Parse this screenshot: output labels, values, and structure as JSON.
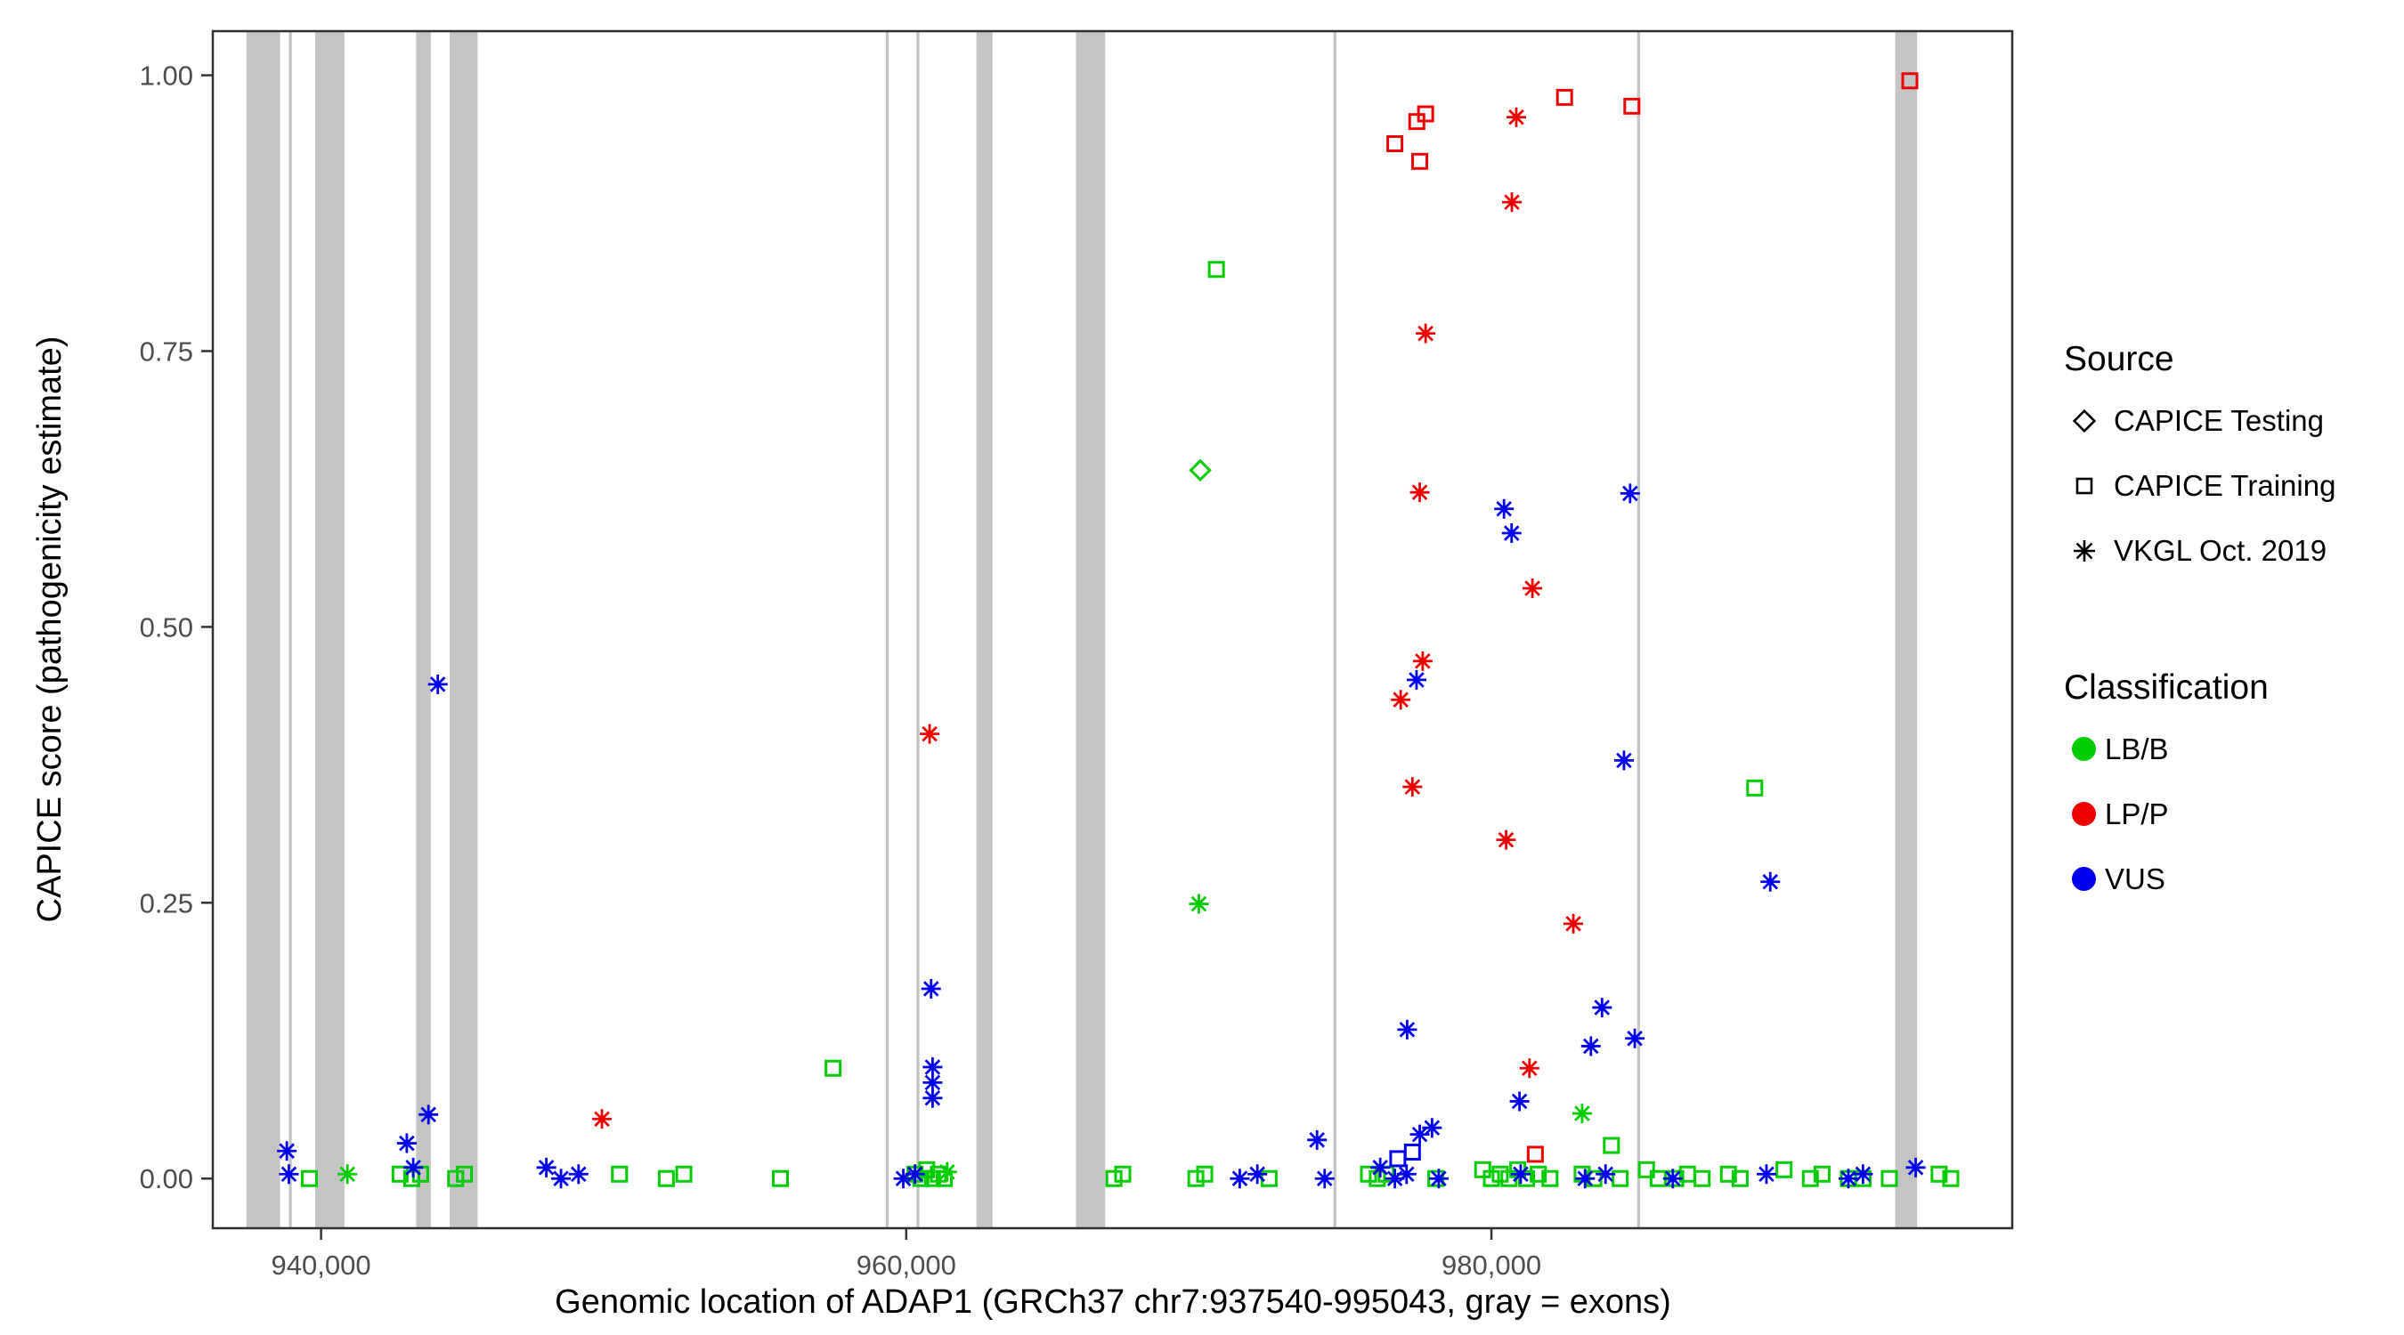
{
  "figure": {
    "legend": {
      "source": {
        "title": "Source",
        "items": [
          {
            "label": "CAPICE Testing",
            "shape": "diamond"
          },
          {
            "label": "CAPICE Training",
            "shape": "square"
          },
          {
            "label": "VKGL Oct. 2019",
            "shape": "asterisk"
          }
        ]
      },
      "classification": {
        "title": "Classification",
        "items": [
          {
            "label": "LB/B",
            "color": "#00CC00"
          },
          {
            "label": "LP/P",
            "color": "#EE0000"
          },
          {
            "label": "VUS",
            "color": "#0000EE"
          }
        ]
      }
    }
  },
  "chart_data": {
    "type": "scatter",
    "title": "",
    "xlabel": "Genomic location of ADAP1 (GRCh37 chr7:937540-995043, gray = exons)",
    "ylabel": "CAPICE score (pathogenicity estimate)",
    "x_domain": [
      936300,
      997800
    ],
    "y_domain": [
      -0.045,
      1.04
    ],
    "x_ticks": [
      940000,
      960000,
      980000
    ],
    "x_tick_labels": [
      "940,000",
      "960,000",
      "980,000"
    ],
    "y_ticks": [
      0,
      0.25,
      0.5,
      0.75,
      1
    ],
    "y_tick_labels": [
      "0.00",
      "0.25",
      "0.50",
      "0.75",
      "1.00"
    ],
    "grid": false,
    "legend_position": "right",
    "panel_border_color": "#2F2F2F",
    "tick_label_color": "#4D4D4D",
    "exon_color": "#C4C4C4",
    "exons": [
      [
        937450,
        938600
      ],
      [
        938900,
        939000
      ],
      [
        939800,
        940800
      ],
      [
        943250,
        943750
      ],
      [
        944400,
        945350
      ],
      [
        959300,
        959400
      ],
      [
        960350,
        960450
      ],
      [
        962400,
        962950
      ],
      [
        965800,
        966800
      ],
      [
        974600,
        974700
      ],
      [
        984980,
        985080
      ],
      [
        993800,
        994550
      ]
    ],
    "series": [
      {
        "name": "LB/B CAPICE Training",
        "classification": "LB/B",
        "source": "CAPICE Training",
        "shape": "square",
        "color": "#00CC00",
        "points": [
          [
            970600,
            0.824
          ],
          [
            989000,
            0.354
          ],
          [
            957500,
            0.1
          ],
          [
            939600,
            0
          ],
          [
            942700,
            0.004
          ],
          [
            943100,
            0
          ],
          [
            943400,
            0.004
          ],
          [
            944600,
            0
          ],
          [
            944900,
            0.004
          ],
          [
            950200,
            0.004
          ],
          [
            951800,
            0
          ],
          [
            952400,
            0.004
          ],
          [
            955700,
            0
          ],
          [
            960300,
            0.004
          ],
          [
            960500,
            0
          ],
          [
            960700,
            0.008
          ],
          [
            960900,
            0
          ],
          [
            961100,
            0.004
          ],
          [
            961300,
            0
          ],
          [
            967100,
            0
          ],
          [
            967400,
            0.004
          ],
          [
            969900,
            0
          ],
          [
            970200,
            0.004
          ],
          [
            972400,
            0
          ],
          [
            975800,
            0.004
          ],
          [
            976100,
            0
          ],
          [
            976400,
            0.004
          ],
          [
            978100,
            0
          ],
          [
            979700,
            0.008
          ],
          [
            980000,
            0
          ],
          [
            980300,
            0.004
          ],
          [
            980600,
            0
          ],
          [
            980900,
            0.008
          ],
          [
            981200,
            0
          ],
          [
            981600,
            0.004
          ],
          [
            982000,
            0
          ],
          [
            983100,
            0.004
          ],
          [
            983500,
            0
          ],
          [
            984100,
            0.03
          ],
          [
            984400,
            0
          ],
          [
            985300,
            0.008
          ],
          [
            985700,
            0
          ],
          [
            986300,
            0
          ],
          [
            986700,
            0.004
          ],
          [
            987200,
            0
          ],
          [
            988100,
            0.004
          ],
          [
            988500,
            0
          ],
          [
            990000,
            0.008
          ],
          [
            990900,
            0
          ],
          [
            991300,
            0.004
          ],
          [
            992200,
            0
          ],
          [
            992700,
            0
          ],
          [
            993600,
            0
          ],
          [
            995300,
            0.004
          ],
          [
            995700,
            0
          ]
        ]
      },
      {
        "name": "LB/B CAPICE Testing",
        "classification": "LB/B",
        "source": "CAPICE Testing",
        "shape": "diamond",
        "color": "#00CC00",
        "points": [
          [
            970050,
            0.642
          ]
        ]
      },
      {
        "name": "LB/B VKGL Oct. 2019",
        "classification": "LB/B",
        "source": "VKGL Oct. 2019",
        "shape": "asterisk",
        "color": "#00CC00",
        "points": [
          [
            970000,
            0.249
          ],
          [
            983100,
            0.059
          ],
          [
            940900,
            0.004
          ],
          [
            961400,
            0.006
          ]
        ]
      },
      {
        "name": "VUS CAPICE Training",
        "classification": "VUS",
        "source": "CAPICE Training",
        "shape": "square",
        "color": "#0000EE",
        "points": [
          [
            976800,
            0.018
          ],
          [
            977300,
            0.024
          ]
        ]
      },
      {
        "name": "VUS VKGL Oct. 2019",
        "classification": "VUS",
        "source": "VKGL Oct. 2019",
        "shape": "asterisk",
        "color": "#0000EE",
        "points": [
          [
            943990,
            0.448
          ],
          [
            980430,
            0.607
          ],
          [
            980690,
            0.585
          ],
          [
            984740,
            0.621
          ],
          [
            977440,
            0.452
          ],
          [
            984530,
            0.379
          ],
          [
            989530,
            0.269
          ],
          [
            960850,
            0.172
          ],
          [
            983780,
            0.155
          ],
          [
            977120,
            0.135
          ],
          [
            983400,
            0.12
          ],
          [
            984900,
            0.127
          ],
          [
            960900,
            0.101
          ],
          [
            960900,
            0.087
          ],
          [
            960900,
            0.073
          ],
          [
            980960,
            0.07
          ],
          [
            943670,
            0.058
          ],
          [
            938830,
            0.025
          ],
          [
            974040,
            0.035
          ],
          [
            977550,
            0.04
          ],
          [
            942930,
            0.032
          ],
          [
            977970,
            0.046
          ],
          [
            938900,
            0.004
          ],
          [
            943150,
            0.01
          ],
          [
            947700,
            0.01
          ],
          [
            948200,
            0
          ],
          [
            948800,
            0.004
          ],
          [
            959900,
            0
          ],
          [
            960300,
            0.004
          ],
          [
            971400,
            0
          ],
          [
            972000,
            0.004
          ],
          [
            974300,
            0
          ],
          [
            976200,
            0.01
          ],
          [
            976700,
            0
          ],
          [
            977100,
            0.004
          ],
          [
            978200,
            0
          ],
          [
            981000,
            0.004
          ],
          [
            983200,
            0
          ],
          [
            983900,
            0.004
          ],
          [
            986200,
            0
          ],
          [
            989400,
            0.004
          ],
          [
            992200,
            0
          ],
          [
            992700,
            0.004
          ],
          [
            994500,
            0.01
          ]
        ]
      },
      {
        "name": "LP/P CAPICE Training",
        "classification": "LP/P",
        "source": "CAPICE Training",
        "shape": "square",
        "color": "#EE0000",
        "points": [
          [
            976700,
            0.938
          ],
          [
            977450,
            0.958
          ],
          [
            977750,
            0.965
          ],
          [
            977550,
            0.922
          ],
          [
            982500,
            0.98
          ],
          [
            984800,
            0.972
          ],
          [
            994300,
            0.995
          ],
          [
            981500,
            0.022
          ]
        ]
      },
      {
        "name": "LP/P VKGL Oct. 2019",
        "classification": "LP/P",
        "source": "VKGL Oct. 2019",
        "shape": "asterisk",
        "color": "#EE0000",
        "points": [
          [
            980850,
            0.962
          ],
          [
            980700,
            0.885
          ],
          [
            977750,
            0.766
          ],
          [
            977550,
            0.622
          ],
          [
            981400,
            0.535
          ],
          [
            977650,
            0.469
          ],
          [
            976900,
            0.434
          ],
          [
            977300,
            0.355
          ],
          [
            980500,
            0.307
          ],
          [
            982800,
            0.231
          ],
          [
            981300,
            0.1
          ],
          [
            960800,
            0.403
          ],
          [
            949600,
            0.054
          ]
        ]
      }
    ]
  }
}
